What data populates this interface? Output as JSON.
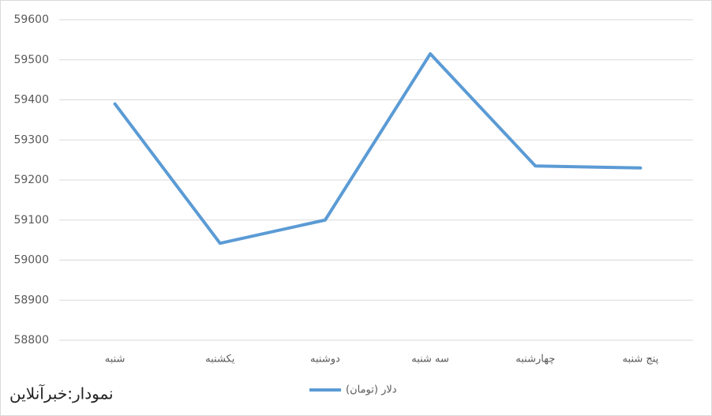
{
  "chart_data": {
    "type": "line",
    "categories": [
      "شنبه",
      "یکشنبه",
      "دوشنبه",
      "سه شنبه",
      "چهارشنبه",
      "پنج شنبه"
    ],
    "series": [
      {
        "name": "دلار (تومان)",
        "color": "#5b9bd5",
        "values": [
          59390,
          59042,
          59100,
          59515,
          59235,
          59230
        ]
      }
    ],
    "ylim": [
      58800,
      59600
    ],
    "yticks": [
      58800,
      58900,
      59000,
      59100,
      59200,
      59300,
      59400,
      59500,
      59600
    ],
    "grid": true,
    "legend": "bottom",
    "annotation": "نمودار:خبرآنلاین"
  }
}
